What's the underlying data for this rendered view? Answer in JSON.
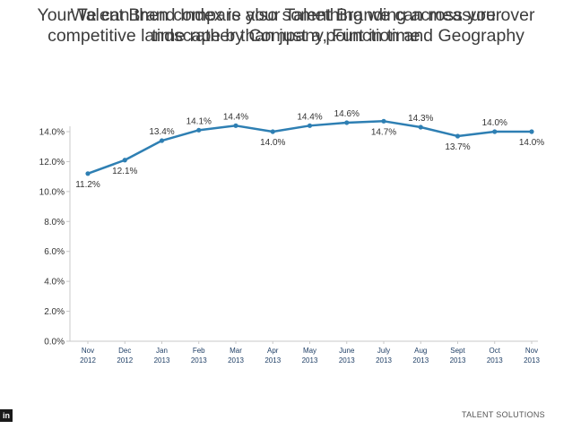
{
  "slide": {
    "title_main": "Your Talent Brand Index is also something we can measure over time rather than just a point in time",
    "title_overlay": "We can then compare your Talent Branding across your competitive landscape by Company, Function and Geography",
    "footer": "TALENT SOLUTIONS",
    "logo_text": "in"
  },
  "chart_data": {
    "type": "line",
    "title": "",
    "xlabel": "",
    "ylabel": "",
    "categories": [
      "Nov 2012",
      "Dec 2012",
      "Jan 2013",
      "Feb 2013",
      "Mar 2013",
      "Apr 2013",
      "May 2013",
      "June 2013",
      "July 2013",
      "Aug 2013",
      "Sept 2013",
      "Oct 2013",
      "Nov 2013"
    ],
    "category_lines": [
      [
        "Nov",
        "2012"
      ],
      [
        "Dec",
        "2012"
      ],
      [
        "Jan",
        "2013"
      ],
      [
        "Feb",
        "2013"
      ],
      [
        "Mar",
        "2013"
      ],
      [
        "Apr",
        "2013"
      ],
      [
        "May",
        "2013"
      ],
      [
        "June",
        "2013"
      ],
      [
        "July",
        "2013"
      ],
      [
        "Aug",
        "2013"
      ],
      [
        "Sept",
        "2013"
      ],
      [
        "Oct",
        "2013"
      ],
      [
        "Nov",
        "2013"
      ]
    ],
    "values": [
      11.2,
      12.1,
      13.4,
      14.1,
      14.4,
      14.0,
      14.4,
      14.6,
      14.7,
      14.3,
      13.7,
      14.0,
      14.0
    ],
    "labels": [
      "11.2%",
      "12.1%",
      "13.4%",
      "14.1%",
      "14.4%",
      "14.0%",
      "14.4%",
      "14.6%",
      "14.7%",
      "14.3%",
      "13.7%",
      "14.0%",
      "14.0%"
    ],
    "label_positions": [
      "below",
      "below",
      "above",
      "above",
      "above",
      "below",
      "above",
      "above",
      "below",
      "above",
      "below",
      "above",
      "below"
    ],
    "ylim": [
      0,
      14
    ],
    "yticks": [
      0,
      2,
      4,
      6,
      8,
      10,
      12,
      14
    ],
    "ytick_labels": [
      "0.0%",
      "2.0%",
      "4.0%",
      "6.0%",
      "8.0%",
      "10.0%",
      "12.0%",
      "14.0%"
    ],
    "grid": false,
    "colors": {
      "line": "#2e7fb3",
      "axis": "#c8c8c8"
    }
  }
}
